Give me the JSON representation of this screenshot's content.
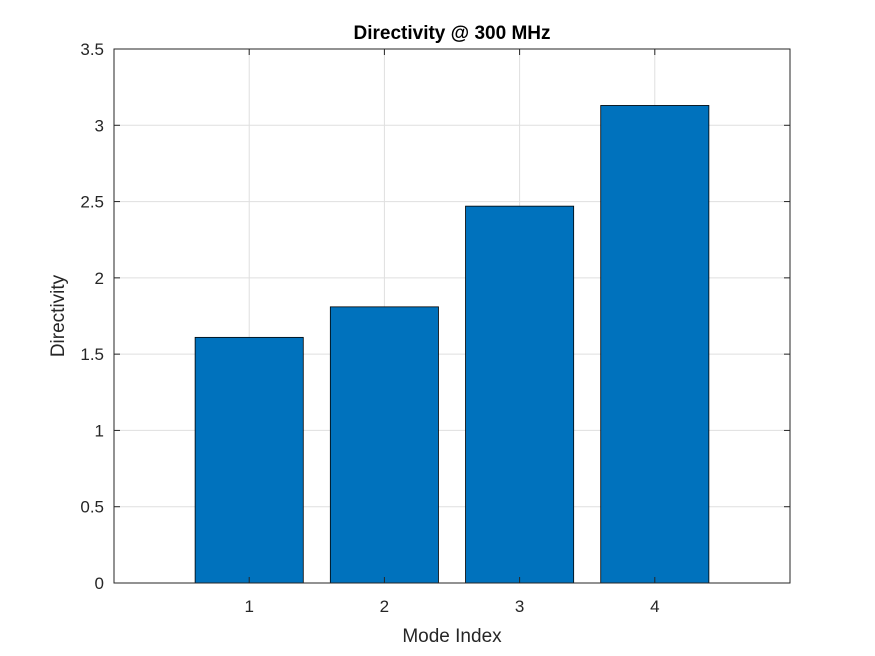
{
  "chart_data": {
    "type": "bar",
    "title": "Directivity @ 300 MHz",
    "xlabel": "Mode Index",
    "ylabel": "Directivity",
    "categories": [
      "1",
      "2",
      "3",
      "4"
    ],
    "x": [
      1,
      2,
      3,
      4
    ],
    "values": [
      1.61,
      1.81,
      2.47,
      3.13
    ],
    "xlim": [
      0,
      5
    ],
    "ylim": [
      0,
      3.5
    ],
    "yticks": [
      0,
      0.5,
      1,
      1.5,
      2,
      2.5,
      3,
      3.5
    ],
    "ytick_labels": [
      "0",
      "0.5",
      "1",
      "1.5",
      "2",
      "2.5",
      "3",
      "3.5"
    ],
    "xticks": [
      1,
      2,
      3,
      4
    ],
    "xtick_labels": [
      "1",
      "2",
      "3",
      "4"
    ],
    "grid": true,
    "bar_color": "#0072BD",
    "bar_edge_color": "#000000"
  }
}
